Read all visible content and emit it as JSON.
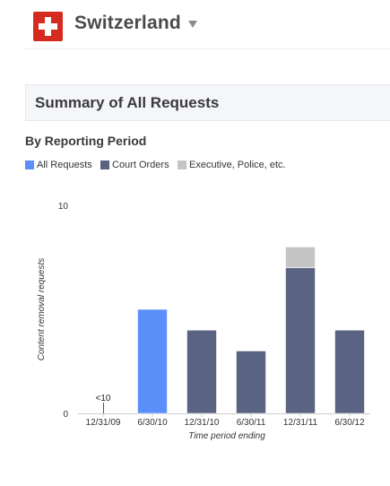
{
  "header": {
    "country": "Switzerland",
    "flag_icon": "swiss-flag-icon",
    "dropdown_icon": "caret-down-icon"
  },
  "summary": {
    "title": "Summary of All Requests"
  },
  "section": {
    "heading": "By Reporting Period"
  },
  "colors": {
    "all_requests": "#5b8ff9",
    "court_orders": "#5a6381",
    "executive_police": "#c5c5c5"
  },
  "legend": [
    {
      "label": "All Requests",
      "color": "#5b8ff9"
    },
    {
      "label": "Court Orders",
      "color": "#5a6381"
    },
    {
      "label": "Executive, Police, etc.",
      "color": "#c5c5c5"
    }
  ],
  "chart_data": {
    "type": "bar",
    "stacked": true,
    "categories": [
      "12/31/09",
      "6/30/10",
      "12/31/10",
      "6/30/11",
      "12/31/11",
      "6/30/12"
    ],
    "series": [
      {
        "name": "All Requests",
        "values": [
          0,
          5,
          0,
          0,
          0,
          0
        ]
      },
      {
        "name": "Court Orders",
        "values": [
          0,
          0,
          4,
          3,
          7,
          4
        ]
      },
      {
        "name": "Executive, Police, etc.",
        "values": [
          0,
          0,
          0,
          0,
          1,
          0
        ]
      }
    ],
    "annotations": [
      {
        "category": "12/31/09",
        "text": "<10"
      }
    ],
    "ylim": [
      0,
      10
    ],
    "yticks": [
      0,
      10
    ],
    "xlabel": "Time period ending",
    "ylabel": "Content removal requests",
    "legend_position": "top-left",
    "grid": false
  }
}
